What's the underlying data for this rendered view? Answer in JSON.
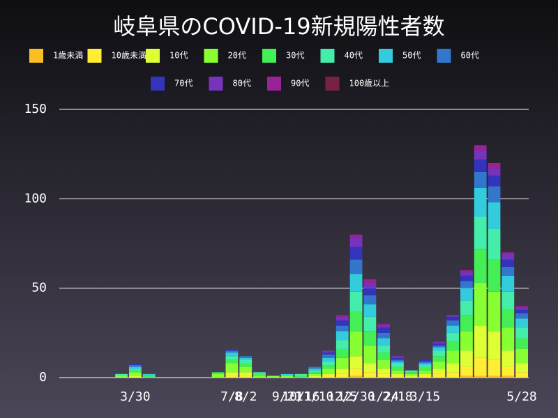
{
  "chart_data": {
    "type": "stacked-bar",
    "title": "岐阜県のCOVID-19新規陽性者数",
    "categories": [
      null,
      null,
      null,
      null,
      null,
      "3/30",
      null,
      null,
      null,
      null,
      null,
      null,
      "7/8",
      "8/2",
      null,
      null,
      "9/21",
      "10/16",
      "11/10",
      null,
      "12/5",
      "12/30",
      null,
      "1/24",
      "2/18",
      null,
      "3/15",
      null,
      null,
      null,
      null,
      null,
      null,
      "5/28"
    ],
    "series": [
      {
        "name": "1歳未満",
        "color": "#fbbf24",
        "values": [
          0,
          0,
          0,
          0,
          0,
          0,
          0,
          0,
          0,
          0,
          0,
          0,
          0,
          0,
          0,
          0,
          0,
          0,
          0,
          0,
          0,
          1,
          0,
          0,
          0,
          0,
          0,
          0,
          0,
          1,
          1,
          1,
          1,
          0
        ]
      },
      {
        "name": "10歳未満",
        "color": "#ffee33",
        "values": [
          0,
          0,
          0,
          0,
          0,
          0,
          0,
          0,
          0,
          0,
          0,
          0,
          1,
          1,
          0,
          0,
          0,
          0,
          0,
          1,
          2,
          4,
          3,
          2,
          1,
          0,
          1,
          2,
          3,
          5,
          10,
          9,
          5,
          3
        ]
      },
      {
        "name": "10代",
        "color": "#ddff33",
        "values": [
          0,
          0,
          0,
          0,
          0,
          1,
          0,
          0,
          0,
          0,
          0,
          0,
          2,
          2,
          0,
          0,
          0,
          0,
          1,
          1,
          3,
          7,
          5,
          3,
          1,
          1,
          1,
          3,
          5,
          9,
          18,
          16,
          9,
          5
        ]
      },
      {
        "name": "20代",
        "color": "#88ff33",
        "values": [
          0,
          0,
          0,
          0,
          1,
          2,
          0,
          0,
          0,
          0,
          0,
          2,
          5,
          3,
          1,
          1,
          1,
          0,
          1,
          3,
          6,
          14,
          10,
          5,
          2,
          1,
          2,
          4,
          7,
          11,
          24,
          22,
          13,
          8
        ]
      },
      {
        "name": "30代",
        "color": "#44ee55",
        "values": [
          0,
          0,
          0,
          0,
          0,
          1,
          1,
          0,
          0,
          0,
          0,
          1,
          2,
          2,
          1,
          0,
          0,
          1,
          1,
          2,
          5,
          11,
          8,
          4,
          2,
          1,
          2,
          3,
          5,
          9,
          19,
          18,
          10,
          6
        ]
      },
      {
        "name": "40代",
        "color": "#44eeaa",
        "values": [
          0,
          0,
          0,
          0,
          1,
          1,
          0,
          0,
          0,
          0,
          0,
          0,
          2,
          2,
          1,
          0,
          0,
          1,
          1,
          2,
          5,
          11,
          8,
          4,
          2,
          1,
          1,
          3,
          5,
          8,
          18,
          17,
          10,
          6
        ]
      },
      {
        "name": "50代",
        "color": "#33ccdd",
        "values": [
          0,
          0,
          0,
          0,
          0,
          1,
          1,
          0,
          0,
          0,
          0,
          0,
          2,
          1,
          0,
          0,
          1,
          0,
          1,
          2,
          5,
          10,
          7,
          4,
          1,
          0,
          1,
          2,
          4,
          7,
          16,
          15,
          9,
          5
        ]
      },
      {
        "name": "60代",
        "color": "#3377cc",
        "values": [
          0,
          0,
          0,
          0,
          0,
          1,
          0,
          0,
          0,
          0,
          0,
          0,
          1,
          1,
          0,
          0,
          0,
          0,
          1,
          2,
          3,
          8,
          5,
          3,
          1,
          0,
          1,
          1,
          3,
          4,
          9,
          9,
          5,
          3
        ]
      },
      {
        "name": "70代",
        "color": "#3333bb",
        "values": [
          0,
          0,
          0,
          0,
          0,
          1,
          0,
          0,
          0,
          0,
          0,
          0,
          1,
          0,
          0,
          0,
          0,
          0,
          0,
          1,
          3,
          7,
          4,
          3,
          1,
          0,
          1,
          1,
          2,
          3,
          7,
          6,
          4,
          2
        ]
      },
      {
        "name": "80代",
        "color": "#7733bb",
        "values": [
          0,
          0,
          0,
          0,
          0,
          0,
          0,
          0,
          0,
          0,
          0,
          0,
          0,
          0,
          0,
          0,
          0,
          0,
          0,
          1,
          2,
          5,
          3,
          1,
          1,
          0,
          0,
          1,
          1,
          2,
          5,
          4,
          3,
          1
        ]
      },
      {
        "name": "90代",
        "color": "#992299",
        "values": [
          0,
          0,
          0,
          0,
          0,
          0,
          0,
          0,
          0,
          0,
          0,
          0,
          0,
          0,
          0,
          0,
          0,
          0,
          0,
          0,
          1,
          2,
          2,
          1,
          0,
          0,
          0,
          0,
          0,
          1,
          3,
          3,
          1,
          1
        ]
      },
      {
        "name": "100歳以上",
        "color": "#772244",
        "values": [
          0,
          0,
          0,
          0,
          0,
          0,
          0,
          0,
          0,
          0,
          0,
          0,
          0,
          0,
          0,
          0,
          0,
          0,
          0,
          0,
          0,
          0,
          0,
          0,
          0,
          0,
          0,
          0,
          0,
          0,
          0,
          0,
          0,
          0
        ]
      }
    ],
    "ylim": [
      0,
      150
    ],
    "yticks": [
      0,
      50,
      100,
      150
    ],
    "grid": true
  }
}
